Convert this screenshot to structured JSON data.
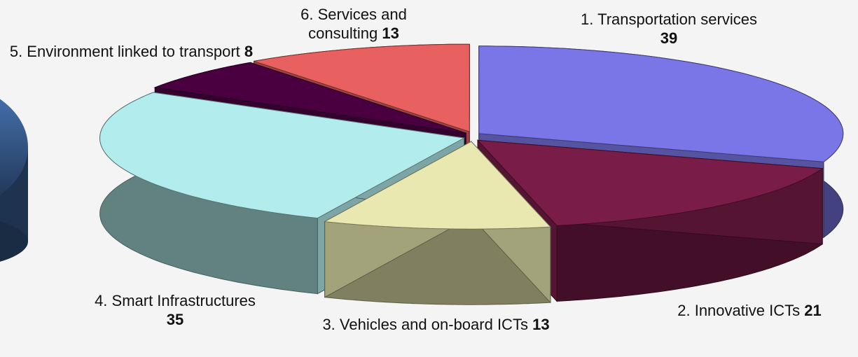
{
  "chart_data": {
    "type": "pie3d",
    "categories": [
      "1. Transportation services",
      "2. Innovative ICTs",
      "3. Vehicles and on-board ICTs",
      "4. Smart Infrastructures",
      "5. Environment linked to transport",
      "6. Services and consulting"
    ],
    "values": [
      39,
      21,
      13,
      35,
      8,
      13
    ],
    "colors": [
      "#7b76e8",
      "#7a1c48",
      "#e8e8b0",
      "#b2ecec",
      "#4a0040",
      "#e86060"
    ]
  }
}
